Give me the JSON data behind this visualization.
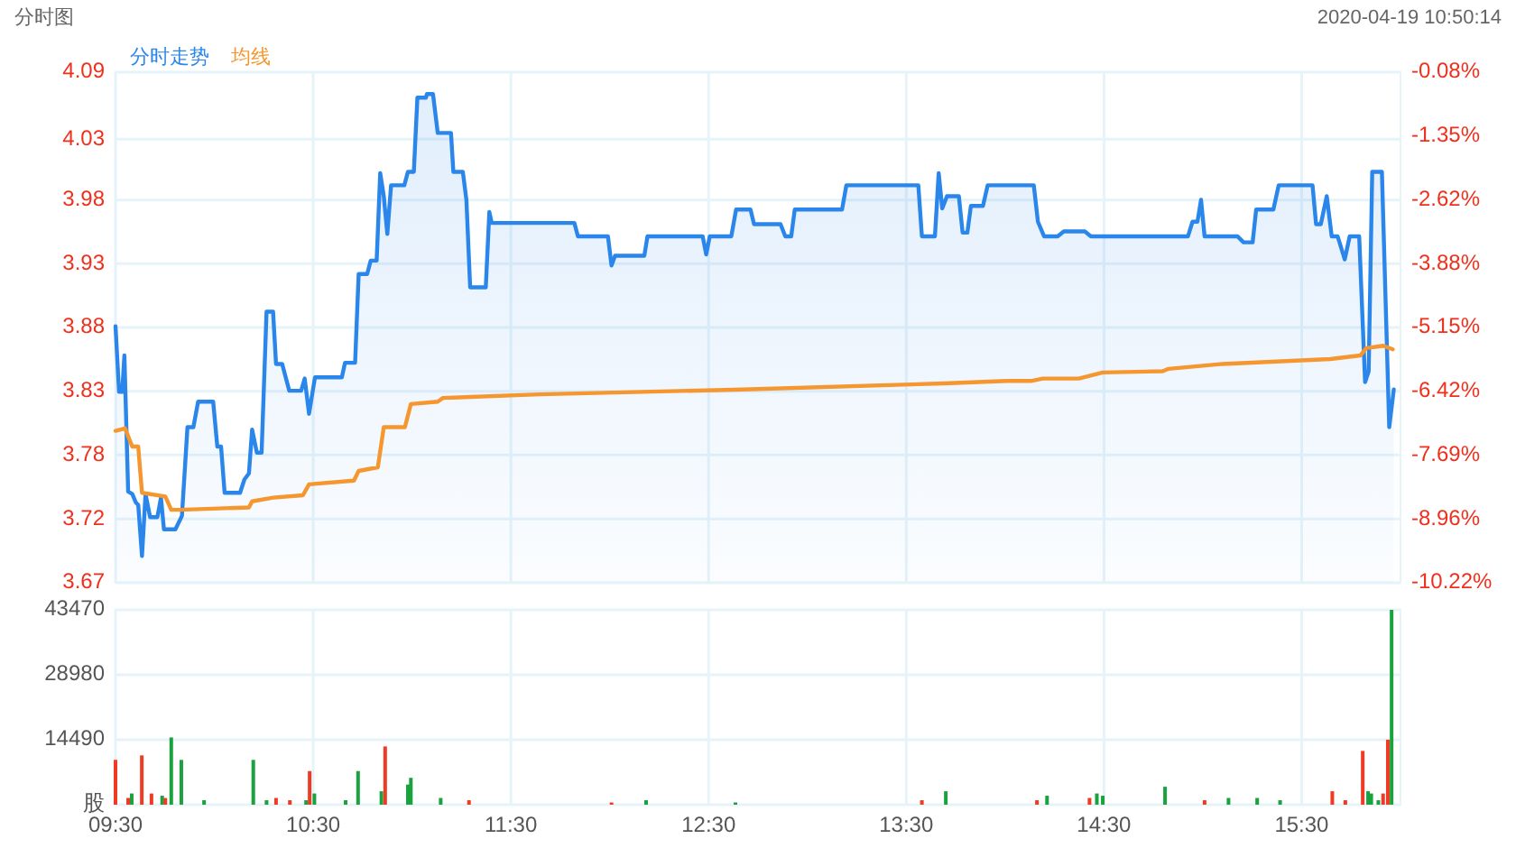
{
  "chart_data": [
    {
      "type": "line",
      "title": "分时图",
      "annotations": [
        "2020-04-19 10:50:14"
      ],
      "legend": "top left",
      "grid": true,
      "tick_labels": "y",
      "xlim": [
        9.5,
        16
      ],
      "xticks": [
        {
          "value": 9.5,
          "label": null
        },
        {
          "value": 10.5,
          "label": null
        },
        {
          "value": 11.5,
          "label": null
        },
        {
          "value": 12.5,
          "label": null
        },
        {
          "value": 13.5,
          "label": null
        },
        {
          "value": 14.5,
          "label": null
        },
        {
          "value": 15.5,
          "label": null
        }
      ],
      "ylim": [
        3.67,
        4.09
      ],
      "yticks": [
        3.67,
        {
          "value": 3.7225,
          "label": "3.72"
        },
        {
          "value": 3.7751,
          "label": "3.78"
        },
        {
          "value": 3.8275,
          "label": "3.83"
        },
        3.88,
        {
          "value": 3.9325,
          "label": "3.93"
        },
        {
          "value": 3.9849,
          "label": "3.98"
        },
        {
          "value": 4.0349,
          "label": "4.03"
        },
        4.09
      ],
      "y2lim": [
        -10.22,
        -0.08
      ],
      "y2ticks": [
        {
          "value": -10.22,
          "label": "-10.22%"
        },
        {
          "value": -8.9551,
          "label": "-8.96%"
        },
        {
          "value": -7.6851,
          "label": "-7.69%"
        },
        {
          "value": -6.4175,
          "label": "-6.42%"
        },
        {
          "value": -5.15,
          "label": "-5.15%"
        },
        {
          "value": -3.8825,
          "label": "-3.88%"
        },
        {
          "value": -2.6151,
          "label": "-2.62%"
        },
        {
          "value": -1.3475,
          "label": "-1.35%"
        },
        {
          "value": -0.08,
          "label": "-0.08%"
        }
      ],
      "series": [
        {
          "name": "分时走势",
          "type": "area",
          "color": "#2a86ea",
          "x": [
            9.5,
            9.518,
            9.534,
            9.545,
            9.564,
            9.585,
            9.603,
            9.615,
            9.634,
            9.652,
            9.675,
            9.712,
            9.73,
            9.745,
            9.803,
            9.836,
            9.864,
            9.894,
            9.918,
            9.994,
            10.015,
            10.034,
            10.052,
            10.13,
            10.152,
            10.175,
            10.191,
            10.215,
            10.239,
            10.264,
            10.297,
            10.312,
            10.343,
            10.379,
            10.439,
            10.457,
            10.479,
            10.509,
            10.645,
            10.661,
            10.712,
            10.73,
            10.773,
            10.791,
            10.821,
            10.839,
            10.857,
            10.875,
            10.894,
            10.961,
            10.979,
            11.009,
            11.027,
            11.07,
            11.075,
            11.106,
            11.13,
            11.197,
            11.209,
            11.257,
            11.275,
            11.294,
            11.373,
            11.391,
            11.403,
            11.821,
            11.839,
            11.991,
            12.009,
            12.027,
            12.175,
            12.191,
            12.47,
            12.488,
            12.506,
            12.615,
            12.639,
            12.712,
            12.73,
            12.864,
            12.888,
            12.918,
            12.936,
            13.175,
            13.197,
            13.561,
            13.579,
            13.645,
            13.664,
            13.682,
            13.706,
            13.766,
            13.785,
            13.809,
            13.827,
            13.888,
            13.912,
            14.145,
            14.166,
            14.197,
            14.266,
            14.297,
            14.403,
            14.434,
            14.925,
            14.948,
            14.973,
            14.991,
            15.009,
            15.175,
            15.206,
            15.252,
            15.27,
            15.357,
            15.384,
            15.555,
            15.573,
            15.597,
            15.627,
            15.652,
            15.682,
            15.718,
            15.743,
            15.791,
            15.821,
            15.839,
            15.857,
            15.906,
            15.943,
            15.966
          ],
          "values": [
            3.881,
            3.827,
            3.827,
            3.857,
            3.745,
            3.743,
            3.736,
            3.734,
            3.692,
            3.743,
            3.724,
            3.724,
            3.74,
            3.714,
            3.714,
            3.725,
            3.798,
            3.798,
            3.819,
            3.819,
            3.782,
            3.782,
            3.744,
            3.744,
            3.755,
            3.76,
            3.796,
            3.777,
            3.777,
            3.893,
            3.893,
            3.85,
            3.85,
            3.828,
            3.828,
            3.838,
            3.809,
            3.839,
            3.839,
            3.851,
            3.851,
            3.924,
            3.924,
            3.935,
            3.935,
            4.007,
            3.988,
            3.957,
            3.997,
            3.997,
            4.008,
            4.008,
            4.069,
            4.069,
            4.072,
            4.072,
            4.04,
            4.04,
            4.008,
            4.008,
            3.985,
            3.913,
            3.913,
            3.975,
            3.966,
            3.966,
            3.955,
            3.955,
            3.931,
            3.939,
            3.939,
            3.955,
            3.955,
            3.94,
            3.955,
            3.955,
            3.977,
            3.977,
            3.965,
            3.965,
            3.955,
            3.955,
            3.977,
            3.977,
            3.997,
            3.997,
            3.955,
            3.955,
            4.007,
            3.978,
            3.988,
            3.988,
            3.958,
            3.958,
            3.98,
            3.98,
            3.997,
            3.997,
            3.967,
            3.955,
            3.955,
            3.959,
            3.959,
            3.955,
            3.955,
            3.967,
            3.967,
            3.985,
            3.955,
            3.955,
            3.95,
            3.95,
            3.977,
            3.977,
            3.997,
            3.997,
            3.965,
            3.965,
            3.988,
            3.955,
            3.955,
            3.936,
            3.955,
            3.955,
            3.835,
            3.844,
            4.008,
            4.008,
            3.798,
            3.829
          ]
        },
        {
          "name": "均线",
          "color": "#f5962e",
          "x": [
            9.5,
            9.548,
            9.585,
            9.615,
            9.634,
            9.752,
            9.782,
            9.827,
            10.175,
            10.191,
            10.297,
            10.448,
            10.479,
            10.706,
            10.73,
            10.827,
            10.857,
            10.964,
            10.994,
            11.13,
            11.155,
            11.645,
            12.673,
            13.691,
            14.009,
            14.13,
            14.191,
            14.373,
            14.494,
            14.797,
            14.827,
            15.1,
            15.645,
            15.797,
            15.827,
            15.912,
            15.961
          ],
          "values": [
            3.795,
            3.797,
            3.782,
            3.782,
            3.744,
            3.741,
            3.73,
            3.73,
            3.732,
            3.737,
            3.74,
            3.742,
            3.751,
            3.754,
            3.762,
            3.765,
            3.798,
            3.798,
            3.817,
            3.819,
            3.822,
            3.825,
            3.829,
            3.834,
            3.836,
            3.836,
            3.838,
            3.838,
            3.843,
            3.844,
            3.846,
            3.85,
            3.854,
            3.857,
            3.863,
            3.865,
            3.862
          ]
        }
      ]
    },
    {
      "type": "bar",
      "grid": true,
      "xlim": [
        9.5,
        16
      ],
      "xticks": [
        {
          "value": 9.5,
          "label": "09:30"
        },
        {
          "value": 10.5,
          "label": "10:30"
        },
        {
          "value": 11.5,
          "label": "11:30"
        },
        {
          "value": 12.5,
          "label": "12:30"
        },
        {
          "value": 13.5,
          "label": "13:30"
        },
        {
          "value": 14.5,
          "label": "14:30"
        },
        {
          "value": 15.5,
          "label": "15:30"
        }
      ],
      "ylim": [
        0,
        43470
      ],
      "yticks": [
        {
          "value": 0,
          "label": "股"
        },
        14490,
        28980,
        43470
      ],
      "x": [
        9.5,
        9.564,
        9.582,
        9.633,
        9.682,
        9.736,
        9.752,
        9.782,
        9.833,
        9.948,
        10.197,
        10.264,
        10.312,
        10.382,
        10.464,
        10.482,
        10.506,
        10.664,
        10.727,
        10.845,
        10.864,
        10.979,
        10.994,
        11.145,
        11.288,
        12.009,
        12.184,
        12.636,
        13.579,
        13.7,
        14.161,
        14.212,
        14.427,
        14.464,
        14.494,
        14.809,
        15.009,
        15.13,
        15.275,
        15.391,
        15.655,
        15.721,
        15.809,
        15.836,
        15.852,
        15.888,
        15.912,
        15.936,
        15.955
      ],
      "values": [
        10000,
        1500,
        2500,
        11000,
        2500,
        2000,
        1500,
        15000,
        10000,
        1000,
        10000,
        1000,
        1500,
        1000,
        1000,
        7500,
        2500,
        1000,
        7500,
        3000,
        13000,
        4500,
        6000,
        1500,
        1000,
        500,
        1000,
        500,
        1000,
        3000,
        1000,
        2000,
        1500,
        2500,
        2000,
        4000,
        1000,
        1500,
        1500,
        1000,
        3000,
        1000,
        12000,
        3000,
        2500,
        1000,
        2500,
        14500,
        43470
      ],
      "colors": [
        "#ef3b24",
        "#ef3b24",
        "#1aa23f",
        "#ef3b24",
        "#ef3b24",
        "#1aa23f",
        "#ef3b24",
        "#1aa23f",
        "#1aa23f",
        "#1aa23f",
        "#1aa23f",
        "#1aa23f",
        "#ef3b24",
        "#ef3b24",
        "#1aa23f",
        "#ef3b24",
        "#1aa23f",
        "#1aa23f",
        "#1aa23f",
        "#1aa23f",
        "#ef3b24",
        "#1aa23f",
        "#1aa23f",
        "#1aa23f",
        "#ef3b24",
        "#ef3b24",
        "#1aa23f",
        "#1aa23f",
        "#ef3b24",
        "#1aa23f",
        "#ef3b24",
        "#1aa23f",
        "#ef3b24",
        "#1aa23f",
        "#1aa23f",
        "#1aa23f",
        "#ef3b24",
        "#1aa23f",
        "#1aa23f",
        "#1aa23f",
        "#ef3b24",
        "#ef3b24",
        "#ef3b24",
        "#1aa23f",
        "#1aa23f",
        "#1aa23f",
        "#ef3b24",
        "#ef3b24",
        "#1aa23f"
      ]
    }
  ]
}
